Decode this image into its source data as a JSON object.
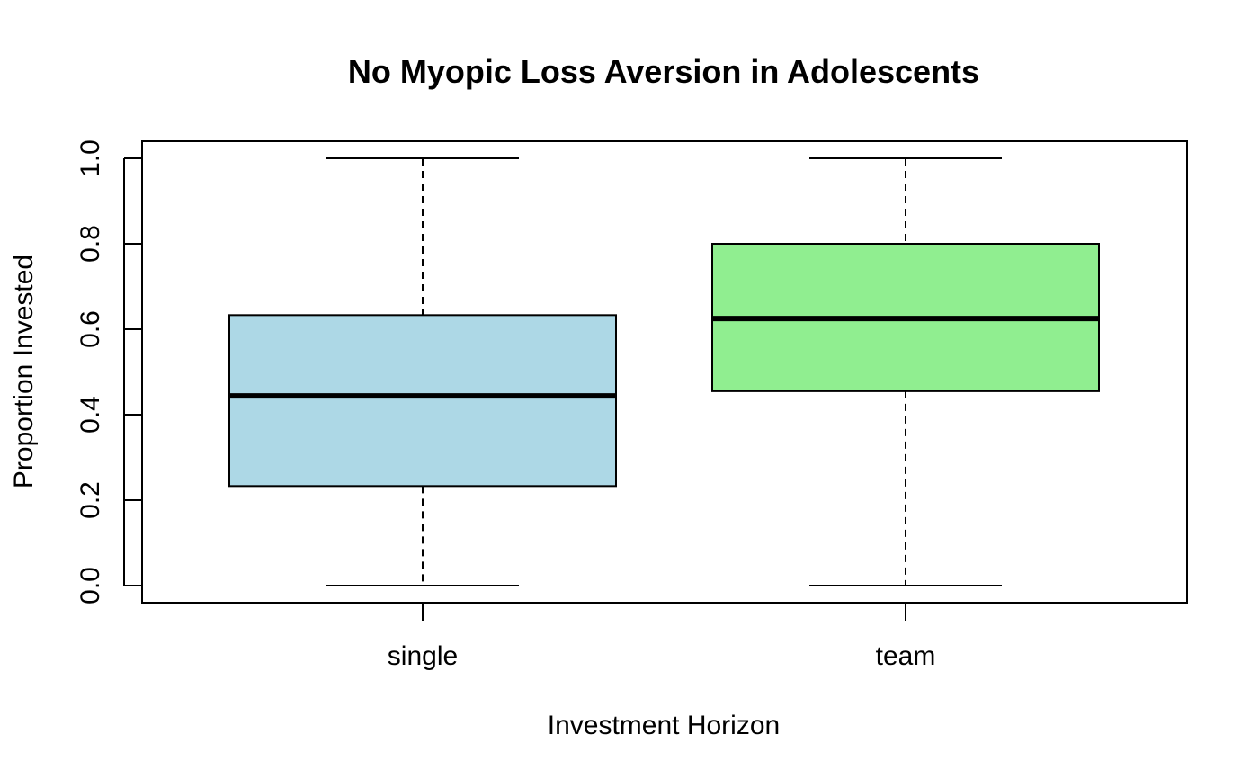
{
  "chart_data": {
    "type": "boxplot",
    "title": "No Myopic Loss Aversion in Adolescents",
    "xlabel": "Investment Horizon",
    "ylabel": "Proportion Invested",
    "categories": [
      "single",
      "team"
    ],
    "boxes": [
      {
        "category": "single",
        "min": 0.0,
        "q1": 0.233,
        "median": 0.444,
        "q3": 0.633,
        "max": 1.0,
        "fill": "#ADD8E6"
      },
      {
        "category": "team",
        "min": 0.0,
        "q1": 0.455,
        "median": 0.625,
        "q3": 0.8,
        "max": 1.0,
        "fill": "#90EE90"
      }
    ],
    "yticks": [
      0.0,
      0.2,
      0.4,
      0.6,
      0.8,
      1.0
    ],
    "ytick_labels": [
      "0.0",
      "0.2",
      "0.4",
      "0.6",
      "0.8",
      "1.0"
    ],
    "ylim": [
      -0.04,
      1.04
    ],
    "grid": false,
    "legend": "none"
  }
}
